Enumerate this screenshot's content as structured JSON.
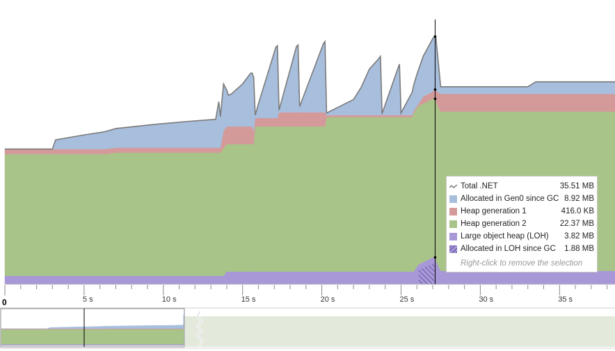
{
  "chart_data": {
    "type": "area",
    "x_unit": "s",
    "xlim": [
      0,
      38.5
    ],
    "ylim": [
      0,
      38
    ],
    "x_ticks": [
      0,
      5,
      10,
      15,
      20,
      25,
      30,
      35
    ],
    "x_tick_labels": [
      "0",
      "5 s",
      "10 s",
      "15 s",
      "20 s",
      "25 s",
      "30 s",
      "35 s"
    ],
    "cursor_x": 27.15,
    "series": [
      {
        "name": "Large object heap (LOH)",
        "color": "#a898d8",
        "x": [
          0,
          13.8,
          14.0,
          25.8,
          26.1,
          27.0,
          27.1,
          27.5,
          38.5
        ],
        "values": [
          1.2,
          1.2,
          1.8,
          1.8,
          2.8,
          3.8,
          3.8,
          1.9,
          1.9
        ]
      },
      {
        "name": "Heap generation 2",
        "color": "#a8c488",
        "x": [
          0,
          6.3,
          6.3,
          13.6,
          13.6,
          15.7,
          15.8,
          20.2,
          20.3,
          25.7,
          25.8,
          27.1,
          27.5,
          38.5
        ],
        "values": [
          17.2,
          17.2,
          17.4,
          17.4,
          18.0,
          18.0,
          20.5,
          20.5,
          21.8,
          21.8,
          22.4,
          22.4,
          22.5,
          22.5
        ]
      },
      {
        "name": "Heap generation 1",
        "color": "#d49a9a",
        "x": [
          0,
          13.6,
          13.8,
          15.6,
          15.8,
          17.2,
          17.3,
          20.2,
          20.3,
          26.1,
          26.4,
          27.0,
          27.5,
          38.5
        ],
        "values": [
          0.7,
          0.7,
          2.5,
          2.5,
          1.2,
          1.2,
          2.0,
          2.0,
          0.3,
          0.3,
          1.0,
          1.0,
          2.5,
          2.5
        ]
      },
      {
        "name": "Allocated in Gen0 since GC",
        "color": "#a8bedd",
        "x": [
          0,
          3.0,
          3.2,
          5.0,
          7.0,
          9.5,
          11.5,
          13.3,
          13.5,
          13.6,
          13.8,
          14.1,
          14.3,
          15.0,
          15.5,
          15.7,
          15.8,
          16.0,
          17.1,
          17.2,
          17.3,
          18.4,
          18.5,
          18.6,
          20.1,
          20.2,
          20.3,
          22.0,
          22.5,
          23.0,
          23.6,
          23.7,
          23.8,
          24.8,
          24.9,
          25.0,
          26.0,
          27.0,
          27.2,
          27.5,
          33.0,
          33.5,
          38.5
        ],
        "values": [
          0,
          0,
          1.3,
          2.0,
          2.7,
          3.3,
          3.7,
          4.0,
          6.5,
          4.4,
          6.6,
          4.4,
          4.6,
          6.0,
          7.5,
          7.6,
          0.4,
          2.0,
          10.0,
          10.2,
          0.3,
          9.3,
          9.5,
          0.8,
          9.7,
          10.0,
          0.3,
          2.2,
          4.0,
          6.5,
          8.0,
          8.3,
          0.2,
          6.6,
          7.2,
          0.3,
          4.5,
          7.5,
          7.5,
          1.0,
          1.0,
          1.7,
          1.7
        ]
      },
      {
        "name": "Total .NET",
        "color": "#7a7a7a"
      }
    ],
    "loh_since_gc_band": [
      26.1,
      27.1
    ],
    "legend": {
      "rows": [
        {
          "label": "Total .NET",
          "value": "35.51 MB",
          "swatch": "line",
          "color": "#7a7a7a"
        },
        {
          "label": "Allocated in Gen0 since GC",
          "value": "8.92 MB",
          "swatch": "fill",
          "color": "#a8bedd"
        },
        {
          "label": "Heap generation 1",
          "value": "416.0 KB",
          "swatch": "fill",
          "color": "#d49a9a"
        },
        {
          "label": "Heap generation 2",
          "value": "22.37 MB",
          "swatch": "fill",
          "color": "#a8c488"
        },
        {
          "label": "Large object heap (LOH)",
          "value": "3.82 MB",
          "swatch": "fill",
          "color": "#a898d8"
        },
        {
          "label": "Allocated in LOH since GC",
          "value": "1.88 MB",
          "swatch": "hatch",
          "color": "#8070b8"
        }
      ],
      "hint": "Right-click to remove the selection"
    }
  }
}
